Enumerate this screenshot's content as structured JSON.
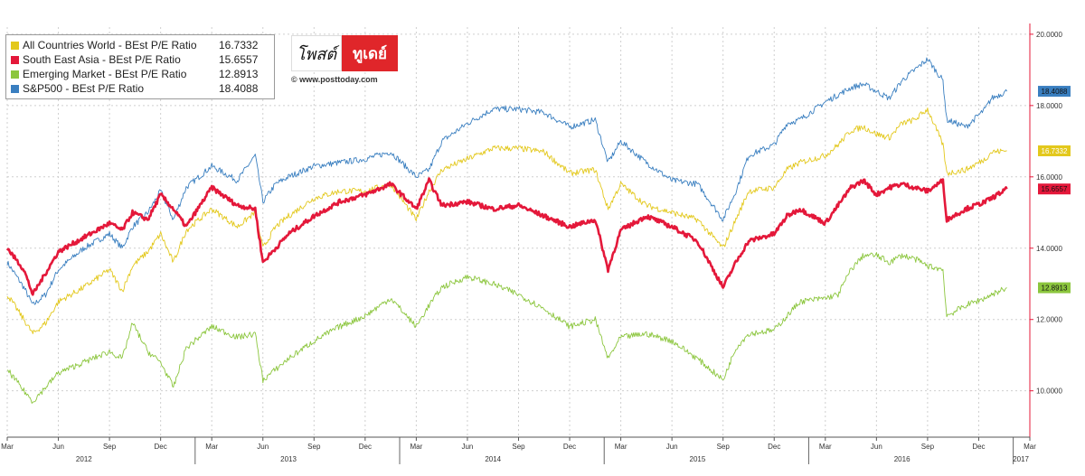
{
  "legend": {
    "items": [
      {
        "name": "All Countries World - BEst P/E Ratio",
        "value": "16.7332",
        "color": "#e3c81c"
      },
      {
        "name": "South East Asia - BEst P/E Ratio",
        "value": "15.6557",
        "color": "#e4183a"
      },
      {
        "name": "Emerging Market - BEst P/E Ratio",
        "value": "12.8913",
        "color": "#8cc63e"
      },
      {
        "name": "S&P500 - BEst P/E Ratio",
        "value": "18.4088",
        "color": "#3a7fc0"
      }
    ]
  },
  "logo": {
    "left_text": "โพสต์",
    "right_text": "ทูเดย์",
    "url": "© www.posttoday.com"
  },
  "chart_data": {
    "type": "line",
    "x_ticks": [
      "Mar",
      "Jun",
      "Sep",
      "Dec",
      "Mar",
      "Jun",
      "Sep",
      "Dec",
      "Mar",
      "Jun",
      "Sep",
      "Dec",
      "Mar",
      "Jun",
      "Sep",
      "Dec",
      "Mar",
      "Jun",
      "Sep",
      "Dec",
      "Mar"
    ],
    "x_years": [
      "2012",
      "2013",
      "2014",
      "2015",
      "2016",
      "2017"
    ],
    "y_ticks": [
      "20.0000",
      "18.0000",
      "16.0000",
      "14.0000",
      "12.0000",
      "10.0000"
    ],
    "ylim": [
      8.7,
      20.2
    ],
    "grid": true,
    "legend_position": "top-left",
    "series": [
      {
        "name": "S&P500 - BEst P/E Ratio",
        "color": "#3a7fc0",
        "last_label": "18.4088",
        "t": [
          0,
          1.3,
          2,
          3,
          4,
          6,
          8,
          9,
          9.8,
          11,
          12,
          13,
          14,
          16,
          18,
          19.4,
          20,
          21,
          22,
          24,
          26,
          28,
          30,
          32,
          33,
          34,
          36,
          38,
          40,
          42,
          44,
          46,
          47,
          48,
          50,
          52,
          54,
          56,
          57,
          58,
          60,
          61,
          62,
          64,
          65,
          66,
          67,
          68,
          69,
          70,
          71,
          72,
          73.2,
          73.5,
          75,
          76.5,
          77,
          78.2
        ],
        "values": [
          13.6,
          12.9,
          12.4,
          12.7,
          13.4,
          14.0,
          14.4,
          14.0,
          14.6,
          15.0,
          15.6,
          14.8,
          15.7,
          16.3,
          15.9,
          16.6,
          15.3,
          15.8,
          16.0,
          16.3,
          16.4,
          16.5,
          16.7,
          16.0,
          16.2,
          17.0,
          17.5,
          17.9,
          17.9,
          17.8,
          17.4,
          17.6,
          16.4,
          17.0,
          16.4,
          15.9,
          15.8,
          14.8,
          15.6,
          16.6,
          16.9,
          17.5,
          17.6,
          18.1,
          18.3,
          18.5,
          18.6,
          18.4,
          18.2,
          18.7,
          19.0,
          19.3,
          18.7,
          17.6,
          17.4,
          17.9,
          18.2,
          18.4
        ]
      },
      {
        "name": "All Countries World - BEst P/E Ratio",
        "color": "#e3c81c",
        "last_label": "16.7332",
        "t": [
          0,
          1.3,
          2,
          3,
          4,
          6,
          8,
          9,
          9.8,
          11,
          12,
          13,
          14,
          16,
          18,
          19.4,
          20,
          21,
          22,
          24,
          26,
          28,
          30,
          32,
          33,
          34,
          36,
          38,
          40,
          42,
          44,
          46,
          47,
          48,
          50,
          52,
          54,
          56,
          57,
          58,
          60,
          61,
          62,
          64,
          65,
          66,
          67,
          68,
          69,
          70,
          71,
          72,
          73.2,
          73.5,
          75,
          76.5,
          77,
          78.2
        ],
        "values": [
          12.7,
          12.0,
          11.6,
          11.9,
          12.5,
          12.9,
          13.4,
          12.8,
          13.5,
          13.9,
          14.4,
          13.6,
          14.5,
          15.1,
          14.6,
          15.0,
          14.0,
          14.6,
          14.9,
          15.4,
          15.6,
          15.6,
          15.8,
          14.8,
          15.6,
          16.2,
          16.5,
          16.8,
          16.8,
          16.7,
          16.1,
          16.2,
          15.1,
          15.8,
          15.2,
          15.0,
          14.8,
          14.0,
          14.8,
          15.6,
          15.7,
          16.2,
          16.4,
          16.6,
          16.9,
          17.3,
          17.4,
          17.2,
          17.1,
          17.5,
          17.6,
          17.9,
          16.9,
          16.1,
          16.2,
          16.5,
          16.7,
          16.73
        ]
      },
      {
        "name": "South East Asia - BEst P/E Ratio",
        "color": "#e4183a",
        "last_label": "15.6557",
        "t": [
          0,
          1.3,
          2,
          3,
          4,
          6,
          8,
          9,
          9.8,
          11,
          12,
          13,
          14,
          16,
          18,
          19.4,
          20,
          21,
          22,
          24,
          26,
          28,
          30,
          32,
          33,
          34,
          36,
          38,
          40,
          42,
          44,
          46,
          47,
          48,
          50,
          52,
          54,
          56,
          57,
          58,
          60,
          61,
          62,
          64,
          65,
          66,
          67,
          68,
          69,
          70,
          71,
          72,
          73.2,
          73.5,
          75,
          76.5,
          77,
          78.2
        ],
        "values": [
          14.0,
          13.4,
          12.7,
          13.3,
          13.9,
          14.3,
          14.7,
          14.5,
          15.0,
          14.8,
          15.5,
          15.1,
          14.6,
          15.7,
          15.2,
          15.1,
          13.6,
          14.0,
          14.4,
          14.9,
          15.3,
          15.5,
          15.8,
          15.1,
          15.9,
          15.2,
          15.3,
          15.1,
          15.2,
          14.9,
          14.6,
          14.8,
          13.4,
          14.5,
          14.9,
          14.6,
          14.2,
          12.9,
          13.6,
          14.2,
          14.4,
          14.9,
          15.1,
          14.7,
          15.2,
          15.7,
          15.9,
          15.5,
          15.7,
          15.8,
          15.7,
          15.6,
          15.9,
          14.8,
          15.1,
          15.3,
          15.4,
          15.66
        ]
      },
      {
        "name": "Emerging Market - BEst P/E Ratio",
        "color": "#8cc63e",
        "last_label": "12.8913",
        "t": [
          0,
          1.3,
          2,
          3,
          4,
          6,
          8,
          9,
          9.8,
          11,
          12,
          13,
          14,
          16,
          18,
          19.4,
          20,
          21,
          22,
          24,
          26,
          28,
          30,
          32,
          33,
          34,
          36,
          38,
          40,
          42,
          44,
          46,
          47,
          48,
          50,
          52,
          54,
          56,
          57,
          58,
          60,
          61,
          62,
          64,
          65,
          66,
          67,
          68,
          69,
          70,
          71,
          72,
          73.2,
          73.5,
          75,
          76.5,
          77,
          78.2
        ],
        "values": [
          10.6,
          10.0,
          9.7,
          10.1,
          10.5,
          10.8,
          11.1,
          10.9,
          11.9,
          11.1,
          10.8,
          10.1,
          11.2,
          11.8,
          11.5,
          11.6,
          10.3,
          10.6,
          10.9,
          11.4,
          11.8,
          12.1,
          12.6,
          11.8,
          12.4,
          12.9,
          13.2,
          13.0,
          12.7,
          12.3,
          11.8,
          12.0,
          10.9,
          11.5,
          11.6,
          11.4,
          10.9,
          10.3,
          11.2,
          11.6,
          11.7,
          12.1,
          12.5,
          12.6,
          12.7,
          13.4,
          13.8,
          13.8,
          13.6,
          13.8,
          13.7,
          13.5,
          13.4,
          12.1,
          12.4,
          12.6,
          12.7,
          12.89
        ]
      }
    ]
  }
}
